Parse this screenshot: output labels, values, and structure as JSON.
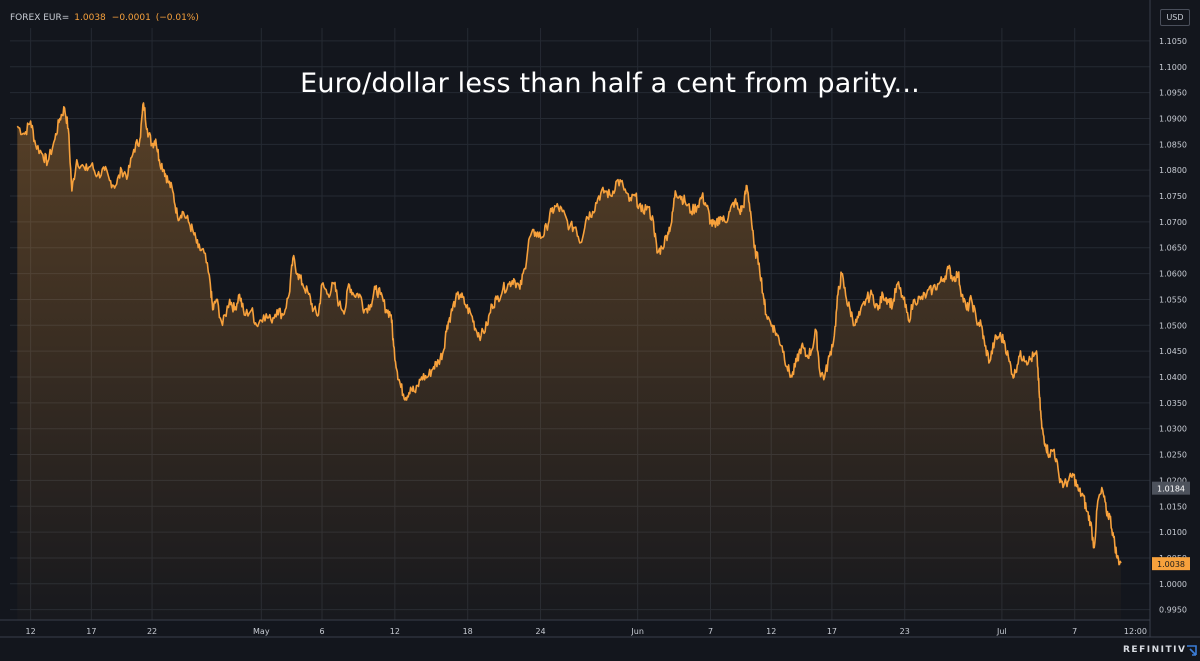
{
  "header": {
    "instrument": "FOREX EUR=",
    "last": "1.0038",
    "change": "−0.0001",
    "change_pct": "(−0.01%)"
  },
  "currency_label": "USD",
  "chart_title": "Euro/dollar less than half a cent from parity...",
  "brand": "REFINITIV",
  "icons": {
    "brand": "refinitiv-logo-icon"
  },
  "colors": {
    "background": "#13161d",
    "line": "#f7a13c",
    "grid": "#252a33",
    "axis_text": "#c8ccd4",
    "marker_last": "#f7a13c",
    "marker_ref": "#4d525c"
  },
  "chart_data": {
    "type": "area",
    "title": "Euro/dollar less than half a cent from parity...",
    "y_ticks": [
      "1.1050",
      "1.1000",
      "1.0950",
      "1.0900",
      "1.0850",
      "1.0800",
      "1.0750",
      "1.0700",
      "1.0650",
      "1.0600",
      "1.0550",
      "1.0500",
      "1.0450",
      "1.0400",
      "1.0350",
      "1.0300",
      "1.0250",
      "1.0200",
      "1.0150",
      "1.0100",
      "1.0050",
      "1.0000",
      "0.9950"
    ],
    "ylim": [
      0.993,
      1.1075
    ],
    "x_ticks": [
      "12",
      "17",
      "22",
      "May",
      "6",
      "12",
      "18",
      "24",
      "Jun",
      "7",
      "12",
      "17",
      "23",
      "Jul",
      "7",
      "12:00"
    ],
    "x_tick_pos": [
      12,
      17,
      22,
      31,
      36,
      42,
      48,
      54,
      62,
      68,
      73,
      78,
      84,
      92,
      98,
      103
    ],
    "xlim": [
      10.3,
      104.2
    ],
    "grid": true,
    "markers": [
      {
        "label": "1.0184",
        "value": 1.0184,
        "style": "ref"
      },
      {
        "label": "1.0038",
        "value": 1.0038,
        "style": "last"
      }
    ],
    "series": [
      {
        "values": [
          [
            10.9,
            1.0885
          ],
          [
            11.5,
            1.087
          ],
          [
            12.0,
            1.0895
          ],
          [
            12.4,
            1.085
          ],
          [
            13.0,
            1.083
          ],
          [
            13.4,
            1.0815
          ],
          [
            14.0,
            1.086
          ],
          [
            14.4,
            1.09
          ],
          [
            14.8,
            1.092
          ],
          [
            15.1,
            1.088
          ],
          [
            15.4,
            1.076
          ],
          [
            15.8,
            1.082
          ],
          [
            16.5,
            1.08
          ],
          [
            17.0,
            1.081
          ],
          [
            17.5,
            1.079
          ],
          [
            18.1,
            1.08
          ],
          [
            18.5,
            1.078
          ],
          [
            19.0,
            1.077
          ],
          [
            19.5,
            1.08
          ],
          [
            20.0,
            1.079
          ],
          [
            20.5,
            1.084
          ],
          [
            21.0,
            1.086
          ],
          [
            21.3,
            1.093
          ],
          [
            21.6,
            1.088
          ],
          [
            22.0,
            1.085
          ],
          [
            22.3,
            1.086
          ],
          [
            22.6,
            1.082
          ],
          [
            23.0,
            1.08
          ],
          [
            23.3,
            1.078
          ],
          [
            23.7,
            1.076
          ],
          [
            24.1,
            1.071
          ],
          [
            24.5,
            1.072
          ],
          [
            25.0,
            1.07
          ],
          [
            25.4,
            1.068
          ],
          [
            25.8,
            1.065
          ],
          [
            26.3,
            1.064
          ],
          [
            26.8,
            1.058
          ],
          [
            27.0,
            1.053
          ],
          [
            27.3,
            1.055
          ],
          [
            27.8,
            1.05
          ],
          [
            28.4,
            1.055
          ],
          [
            28.8,
            1.053
          ],
          [
            29.2,
            1.056
          ],
          [
            29.6,
            1.052
          ],
          [
            30.2,
            1.053
          ],
          [
            30.6,
            1.05
          ],
          [
            31.2,
            1.052
          ],
          [
            31.8,
            1.051
          ],
          [
            32.3,
            1.053
          ],
          [
            32.8,
            1.052
          ],
          [
            33.3,
            1.056
          ],
          [
            33.6,
            1.063
          ],
          [
            34.0,
            1.06
          ],
          [
            34.4,
            1.058
          ],
          [
            34.9,
            1.056
          ],
          [
            35.3,
            1.053
          ],
          [
            35.7,
            1.052
          ],
          [
            36.0,
            1.058
          ],
          [
            36.5,
            1.056
          ],
          [
            37.0,
            1.058
          ],
          [
            37.4,
            1.054
          ],
          [
            37.9,
            1.053
          ],
          [
            38.2,
            1.058
          ],
          [
            38.6,
            1.056
          ],
          [
            39.1,
            1.056
          ],
          [
            39.5,
            1.053
          ],
          [
            40.0,
            1.054
          ],
          [
            40.4,
            1.057
          ],
          [
            40.8,
            1.056
          ],
          [
            41.3,
            1.053
          ],
          [
            41.7,
            1.052
          ],
          [
            41.9,
            1.046
          ],
          [
            42.2,
            1.041
          ],
          [
            42.5,
            1.038
          ],
          [
            42.9,
            1.036
          ],
          [
            43.3,
            1.038
          ],
          [
            43.7,
            1.037
          ],
          [
            44.2,
            1.04
          ],
          [
            44.7,
            1.04
          ],
          [
            45.2,
            1.042
          ],
          [
            45.6,
            1.043
          ],
          [
            46.0,
            1.045
          ],
          [
            46.3,
            1.05
          ],
          [
            46.6,
            1.052
          ],
          [
            47.0,
            1.055
          ],
          [
            47.4,
            1.056
          ],
          [
            47.8,
            1.054
          ],
          [
            48.3,
            1.052
          ],
          [
            48.7,
            1.049
          ],
          [
            49.1,
            1.048
          ],
          [
            49.6,
            1.05
          ],
          [
            50.0,
            1.054
          ],
          [
            50.4,
            1.055
          ],
          [
            50.9,
            1.057
          ],
          [
            51.4,
            1.058
          ],
          [
            51.8,
            1.059
          ],
          [
            52.3,
            1.057
          ],
          [
            52.7,
            1.061
          ],
          [
            53.1,
            1.067
          ],
          [
            53.6,
            1.068
          ],
          [
            54.1,
            1.067
          ],
          [
            54.5,
            1.069
          ],
          [
            54.9,
            1.072
          ],
          [
            55.3,
            1.073
          ],
          [
            55.8,
            1.072
          ],
          [
            56.4,
            1.069
          ],
          [
            56.9,
            1.069
          ],
          [
            57.3,
            1.066
          ],
          [
            57.8,
            1.071
          ],
          [
            58.3,
            1.072
          ],
          [
            58.8,
            1.075
          ],
          [
            59.3,
            1.076
          ],
          [
            59.8,
            1.075
          ],
          [
            60.3,
            1.078
          ],
          [
            60.8,
            1.077
          ],
          [
            61.3,
            1.074
          ],
          [
            61.8,
            1.075
          ],
          [
            62.3,
            1.072
          ],
          [
            62.8,
            1.073
          ],
          [
            63.3,
            1.07
          ],
          [
            63.6,
            1.064
          ],
          [
            64.0,
            1.065
          ],
          [
            64.5,
            1.068
          ],
          [
            64.8,
            1.07
          ],
          [
            65.1,
            1.076
          ],
          [
            65.5,
            1.075
          ],
          [
            65.9,
            1.074
          ],
          [
            66.4,
            1.072
          ],
          [
            66.9,
            1.073
          ],
          [
            67.3,
            1.075
          ],
          [
            67.7,
            1.073
          ],
          [
            68.0,
            1.07
          ],
          [
            68.4,
            1.069
          ],
          [
            68.8,
            1.071
          ],
          [
            69.2,
            1.07
          ],
          [
            69.6,
            1.072
          ],
          [
            70.0,
            1.074
          ],
          [
            70.4,
            1.072
          ],
          [
            70.7,
            1.073
          ],
          [
            71.0,
            1.077
          ],
          [
            71.3,
            1.072
          ],
          [
            71.6,
            1.065
          ],
          [
            72.0,
            1.062
          ],
          [
            72.4,
            1.055
          ],
          [
            72.6,
            1.052
          ],
          [
            73.1,
            1.05
          ],
          [
            73.5,
            1.048
          ],
          [
            73.9,
            1.046
          ],
          [
            74.3,
            1.042
          ],
          [
            74.7,
            1.04
          ],
          [
            75.1,
            1.043
          ],
          [
            75.5,
            1.046
          ],
          [
            75.9,
            1.044
          ],
          [
            76.3,
            1.045
          ],
          [
            76.7,
            1.049
          ],
          [
            77.0,
            1.041
          ],
          [
            77.4,
            1.04
          ],
          [
            77.8,
            1.044
          ],
          [
            78.2,
            1.048
          ],
          [
            78.5,
            1.056
          ],
          [
            78.8,
            1.06
          ],
          [
            79.2,
            1.055
          ],
          [
            79.5,
            1.053
          ],
          [
            79.9,
            1.05
          ],
          [
            80.3,
            1.052
          ],
          [
            80.8,
            1.055
          ],
          [
            81.3,
            1.056
          ],
          [
            81.8,
            1.053
          ],
          [
            82.2,
            1.056
          ],
          [
            82.6,
            1.055
          ],
          [
            83.0,
            1.054
          ],
          [
            83.4,
            1.058
          ],
          [
            83.9,
            1.055
          ],
          [
            84.3,
            1.051
          ],
          [
            84.8,
            1.055
          ],
          [
            85.3,
            1.055
          ],
          [
            85.8,
            1.056
          ],
          [
            86.3,
            1.057
          ],
          [
            86.8,
            1.058
          ],
          [
            87.2,
            1.059
          ],
          [
            87.6,
            1.061
          ],
          [
            88.0,
            1.059
          ],
          [
            88.4,
            1.06
          ],
          [
            88.7,
            1.056
          ],
          [
            89.1,
            1.053
          ],
          [
            89.5,
            1.055
          ],
          [
            89.9,
            1.051
          ],
          [
            90.3,
            1.05
          ],
          [
            90.6,
            1.046
          ],
          [
            91.0,
            1.043
          ],
          [
            91.4,
            1.047
          ],
          [
            91.8,
            1.048
          ],
          [
            92.2,
            1.047
          ],
          [
            92.6,
            1.043
          ],
          [
            93.0,
            1.04
          ],
          [
            93.4,
            1.044
          ],
          [
            93.8,
            1.044
          ],
          [
            94.2,
            1.043
          ],
          [
            94.6,
            1.044
          ],
          [
            94.9,
            1.044
          ],
          [
            95.1,
            1.036
          ],
          [
            95.3,
            1.03
          ],
          [
            95.6,
            1.027
          ],
          [
            95.9,
            1.025
          ],
          [
            96.3,
            1.026
          ],
          [
            96.7,
            1.021
          ],
          [
            97.1,
            1.019
          ],
          [
            97.5,
            1.02
          ],
          [
            97.9,
            1.021
          ],
          [
            98.3,
            1.018
          ],
          [
            98.7,
            1.017
          ],
          [
            99.0,
            1.014
          ],
          [
            99.3,
            1.012
          ],
          [
            99.6,
            1.007
          ],
          [
            99.9,
            1.016
          ],
          [
            100.3,
            1.018
          ],
          [
            100.6,
            1.014
          ],
          [
            100.9,
            1.013
          ],
          [
            101.2,
            1.009
          ],
          [
            101.5,
            1.005
          ],
          [
            101.8,
            1.004
          ]
        ]
      }
    ]
  }
}
